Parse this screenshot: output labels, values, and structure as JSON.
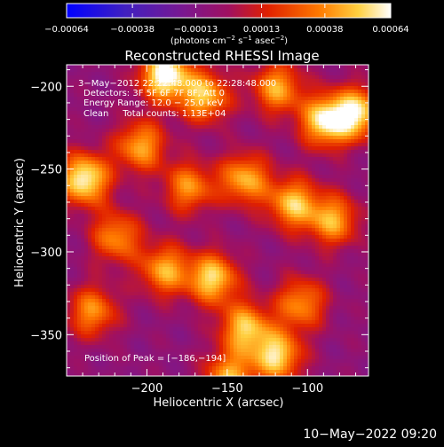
{
  "chart_data": {
    "type": "heatmap",
    "title": "Reconstructed RHESSI Image",
    "xlabel": "Heliocentric X (arcsec)",
    "ylabel": "Heliocentric Y (arcsec)",
    "xlim": [
      -250,
      -62
    ],
    "ylim": [
      -375,
      -187
    ],
    "x_ticks": [
      -200,
      -150,
      -100
    ],
    "x_tick_labels": [
      "−200",
      "−150",
      "−100"
    ],
    "y_ticks": [
      -200,
      -250,
      -300,
      -350
    ],
    "y_tick_labels": [
      "−200",
      "−250",
      "−300",
      "−350"
    ],
    "colorbar": {
      "min": -0.00064,
      "max": 0.00064,
      "ticks": [
        -0.00064,
        -0.00038,
        -0.00013,
        0.00013,
        0.00038,
        0.00064
      ],
      "tick_labels": [
        "−0.00064",
        "−0.00038",
        "−0.00013",
        "0.00013",
        "0.00038",
        "0.00064"
      ],
      "units_prefix": "(photons cm",
      "units_sup1": "−2",
      "units_mid": " s",
      "units_sup2": "−1",
      "units_mid2": " asec",
      "units_sup3": "−2",
      "units_suffix": ")"
    },
    "annotations": [
      "3−May−2012 22:22:48.000 to 22:28:48.000",
      "Detectors: 3F 5F 6F 7F 8F, Att 0",
      "Energy Range: 12.0 − 25.0 keV",
      "Clean     Total counts: 1.13E+04"
    ],
    "peak_label": "Position of Peak = [−186,−194]",
    "peak": {
      "x": -186,
      "y": -194
    },
    "hot_spots": [
      {
        "x": -190,
        "y": -192,
        "value": 0.00064
      },
      {
        "x": -165,
        "y": -205,
        "value": 0.00045
      },
      {
        "x": -120,
        "y": -200,
        "value": 0.0004
      },
      {
        "x": -90,
        "y": -220,
        "value": 0.00055
      },
      {
        "x": -70,
        "y": -215,
        "value": 0.0005
      },
      {
        "x": -240,
        "y": -255,
        "value": 0.0006
      },
      {
        "x": -205,
        "y": -235,
        "value": 0.0004
      },
      {
        "x": -175,
        "y": -260,
        "value": 0.00035
      },
      {
        "x": -140,
        "y": -255,
        "value": 0.00042
      },
      {
        "x": -110,
        "y": -270,
        "value": 0.00045
      },
      {
        "x": -85,
        "y": -280,
        "value": 0.0004
      },
      {
        "x": -190,
        "y": -310,
        "value": 0.0004
      },
      {
        "x": -160,
        "y": -315,
        "value": 0.0005
      },
      {
        "x": -235,
        "y": -335,
        "value": 0.00035
      },
      {
        "x": -140,
        "y": -345,
        "value": 0.00045
      },
      {
        "x": -105,
        "y": -330,
        "value": 0.00035
      },
      {
        "x": -120,
        "y": -362,
        "value": 0.0005
      },
      {
        "x": -150,
        "y": -375,
        "value": 0.0004
      },
      {
        "x": -220,
        "y": -290,
        "value": 0.00035
      }
    ],
    "grid": false
  },
  "footer": {
    "timestamp": "10−May−2022 09:20"
  },
  "colors": {
    "background": "#000000",
    "foreground": "#ffffff",
    "colormap": [
      "#0000ff",
      "#5b1f9c",
      "#8a1080",
      "#c00020",
      "#ff6000",
      "#ffc040",
      "#ffffff"
    ]
  }
}
